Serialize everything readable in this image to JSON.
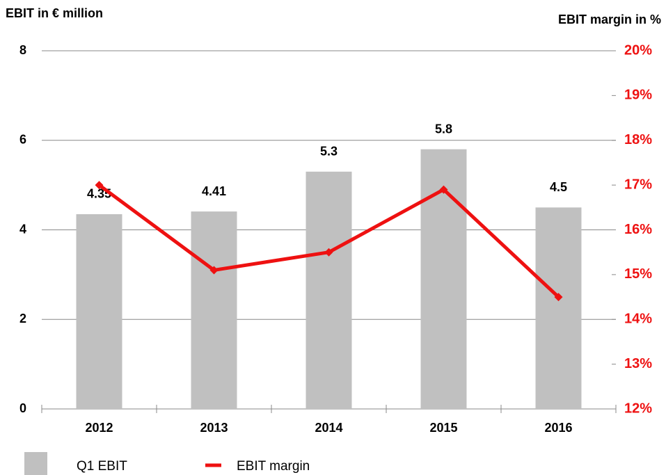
{
  "chart_data": {
    "type": "bar",
    "title": "EBIT in € million",
    "y2_title": "EBIT margin in %",
    "categories": [
      "2012",
      "2013",
      "2014",
      "2015",
      "2016"
    ],
    "series": [
      {
        "name": "Q1 EBIT",
        "color": "#c0c0c0",
        "values": [
          4.35,
          4.41,
          5.3,
          5.8,
          4.5
        ]
      },
      {
        "name": "EBIT margin",
        "type": "line",
        "axis": "y2",
        "color": "#ee1111",
        "values": [
          17.0,
          15.1,
          15.5,
          16.9,
          14.5
        ]
      }
    ],
    "ylim": [
      0,
      8
    ],
    "yticks": [
      0,
      2,
      4,
      6,
      8
    ],
    "y2lim": [
      12,
      20
    ],
    "y2ticks": [
      {
        "value": 12,
        "label": "12%"
      },
      {
        "value": 13,
        "label": "13%"
      },
      {
        "value": 14,
        "label": "14%"
      },
      {
        "value": 15,
        "label": "15%"
      },
      {
        "value": 16,
        "label": "16%"
      },
      {
        "value": 17,
        "label": "17%"
      },
      {
        "value": 18,
        "label": "18%"
      },
      {
        "value": 19,
        "label": "19%"
      },
      {
        "value": 20,
        "label": "20%"
      }
    ],
    "grid": true
  }
}
